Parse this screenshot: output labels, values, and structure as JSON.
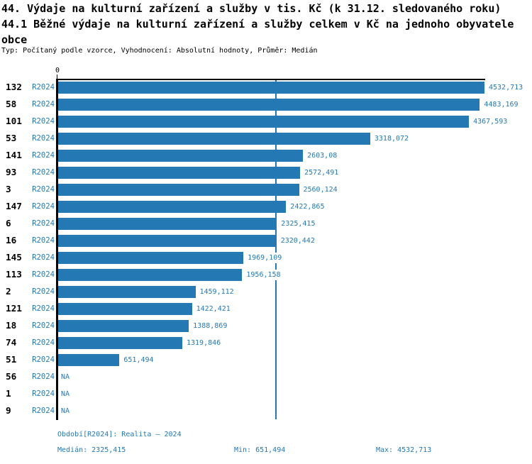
{
  "colors": {
    "accent": "#2478b4",
    "axis": "#000000",
    "background": "#ffffff"
  },
  "chart_data": {
    "type": "bar",
    "orientation": "horizontal",
    "title": "44. Výdaje na kulturní zařízení a služby v tis. Kč (k 31.12. sledovaného roku)",
    "subtitle": "44.1 Běžné výdaje na kulturní zařízení a služby celkem v Kč na jednoho obyvatele obce",
    "meta": "Typ: Počítaný podle vzorce, Vyhodnocení: Absolutní hodnoty, Průměr: Medián",
    "value_axis": {
      "min": 0,
      "max": 4532.713,
      "tick_labels": [
        "0"
      ]
    },
    "median": 2325.415,
    "na_label": "NA",
    "rows": [
      {
        "id": "132",
        "period": "R2024",
        "value": 4532.713,
        "label": "4532,713"
      },
      {
        "id": "58",
        "period": "R2024",
        "value": 4483.169,
        "label": "4483,169"
      },
      {
        "id": "101",
        "period": "R2024",
        "value": 4367.593,
        "label": "4367,593"
      },
      {
        "id": "53",
        "period": "R2024",
        "value": 3318.072,
        "label": "3318,072"
      },
      {
        "id": "141",
        "period": "R2024",
        "value": 2603.08,
        "label": "2603,08"
      },
      {
        "id": "93",
        "period": "R2024",
        "value": 2572.491,
        "label": "2572,491"
      },
      {
        "id": "3",
        "period": "R2024",
        "value": 2560.124,
        "label": "2560,124"
      },
      {
        "id": "147",
        "period": "R2024",
        "value": 2422.865,
        "label": "2422,865"
      },
      {
        "id": "6",
        "period": "R2024",
        "value": 2325.415,
        "label": "2325,415"
      },
      {
        "id": "16",
        "period": "R2024",
        "value": 2320.442,
        "label": "2320,442"
      },
      {
        "id": "145",
        "period": "R2024",
        "value": 1969.109,
        "label": "1969,109"
      },
      {
        "id": "113",
        "period": "R2024",
        "value": 1956.158,
        "label": "1956,158"
      },
      {
        "id": "2",
        "period": "R2024",
        "value": 1459.112,
        "label": "1459,112"
      },
      {
        "id": "121",
        "period": "R2024",
        "value": 1422.421,
        "label": "1422,421"
      },
      {
        "id": "18",
        "period": "R2024",
        "value": 1388.869,
        "label": "1388,869"
      },
      {
        "id": "74",
        "period": "R2024",
        "value": 1319.846,
        "label": "1319,846"
      },
      {
        "id": "51",
        "period": "R2024",
        "value": 651.494,
        "label": "651,494"
      },
      {
        "id": "56",
        "period": "R2024",
        "value": null,
        "label": "NA"
      },
      {
        "id": "1",
        "period": "R2024",
        "value": null,
        "label": "NA"
      },
      {
        "id": "9",
        "period": "R2024",
        "value": null,
        "label": "NA"
      }
    ]
  },
  "footer": {
    "period_line": "Období[R2024]: Realita – 2024",
    "median_label": "Medián: 2325,415",
    "min_label": "Min: 651,494",
    "max_label": "Max: 4532,713"
  }
}
